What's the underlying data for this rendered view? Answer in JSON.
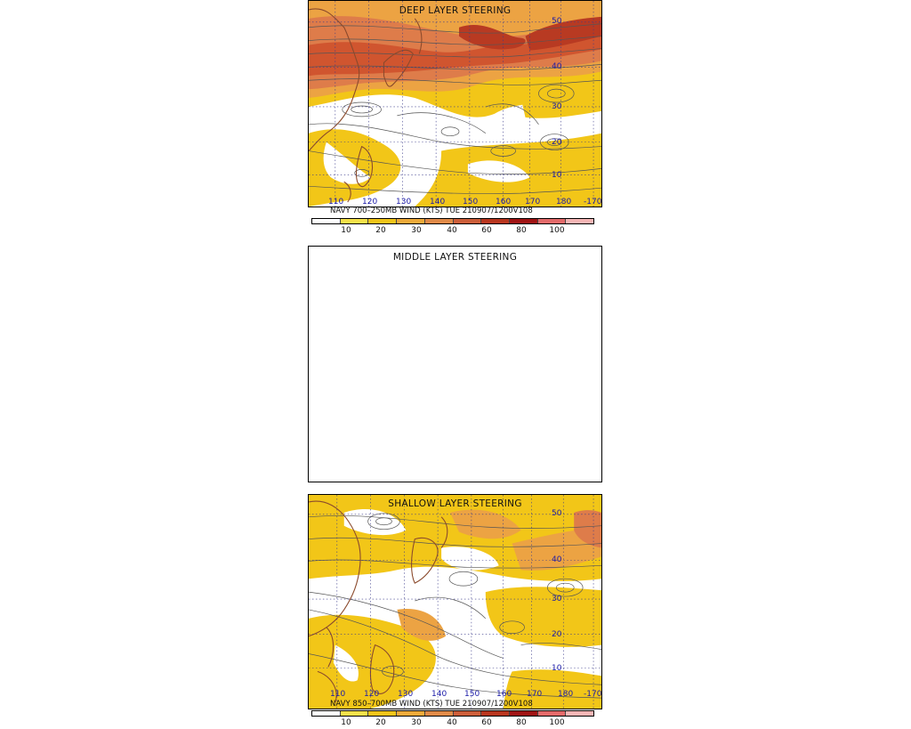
{
  "panels": {
    "deep": {
      "title": "DEEP LAYER STEERING",
      "caption": "NAVY 700–250MB WIND (KTS) TUE 210907/1200V108",
      "lat_labels": [
        "50",
        "40",
        "30",
        "20",
        "10"
      ],
      "lon_labels": [
        "110",
        "120",
        "130",
        "140",
        "150",
        "160",
        "170",
        "180",
        "-170"
      ]
    },
    "middle": {
      "title": "MIDDLE LAYER STEERING"
    },
    "shallow": {
      "title": "SHALLOW LAYER STEERING",
      "caption": "NAVY 850–700MB WIND (KTS) TUE 210907/1200V108",
      "lat_labels": [
        "50",
        "40",
        "30",
        "20",
        "10"
      ],
      "lon_labels": [
        "110",
        "120",
        "130",
        "140",
        "150",
        "160",
        "170",
        "180",
        "-170"
      ]
    }
  },
  "colorbar": {
    "ticks": [
      "10",
      "20",
      "30",
      "40",
      "60",
      "80",
      "100"
    ],
    "colors": [
      "#ffffff",
      "#f5e14a",
      "#f0c419",
      "#eeaa3a",
      "#e08a48",
      "#cc5e3a",
      "#b8361f",
      "#a01414",
      "#e36a6a",
      "#f5b5b5"
    ]
  },
  "wind_colors": {
    "calm": "#ffffff",
    "light": "#f2c618",
    "moderate": "#eca343",
    "strong": "#de7c4a",
    "jet": "#c9452c"
  },
  "map_colors": {
    "coastline": "#8b4a2c",
    "streamline": "#555555",
    "grid": "#3a3a8a",
    "lat_lon_label": "#1a1aa8"
  }
}
